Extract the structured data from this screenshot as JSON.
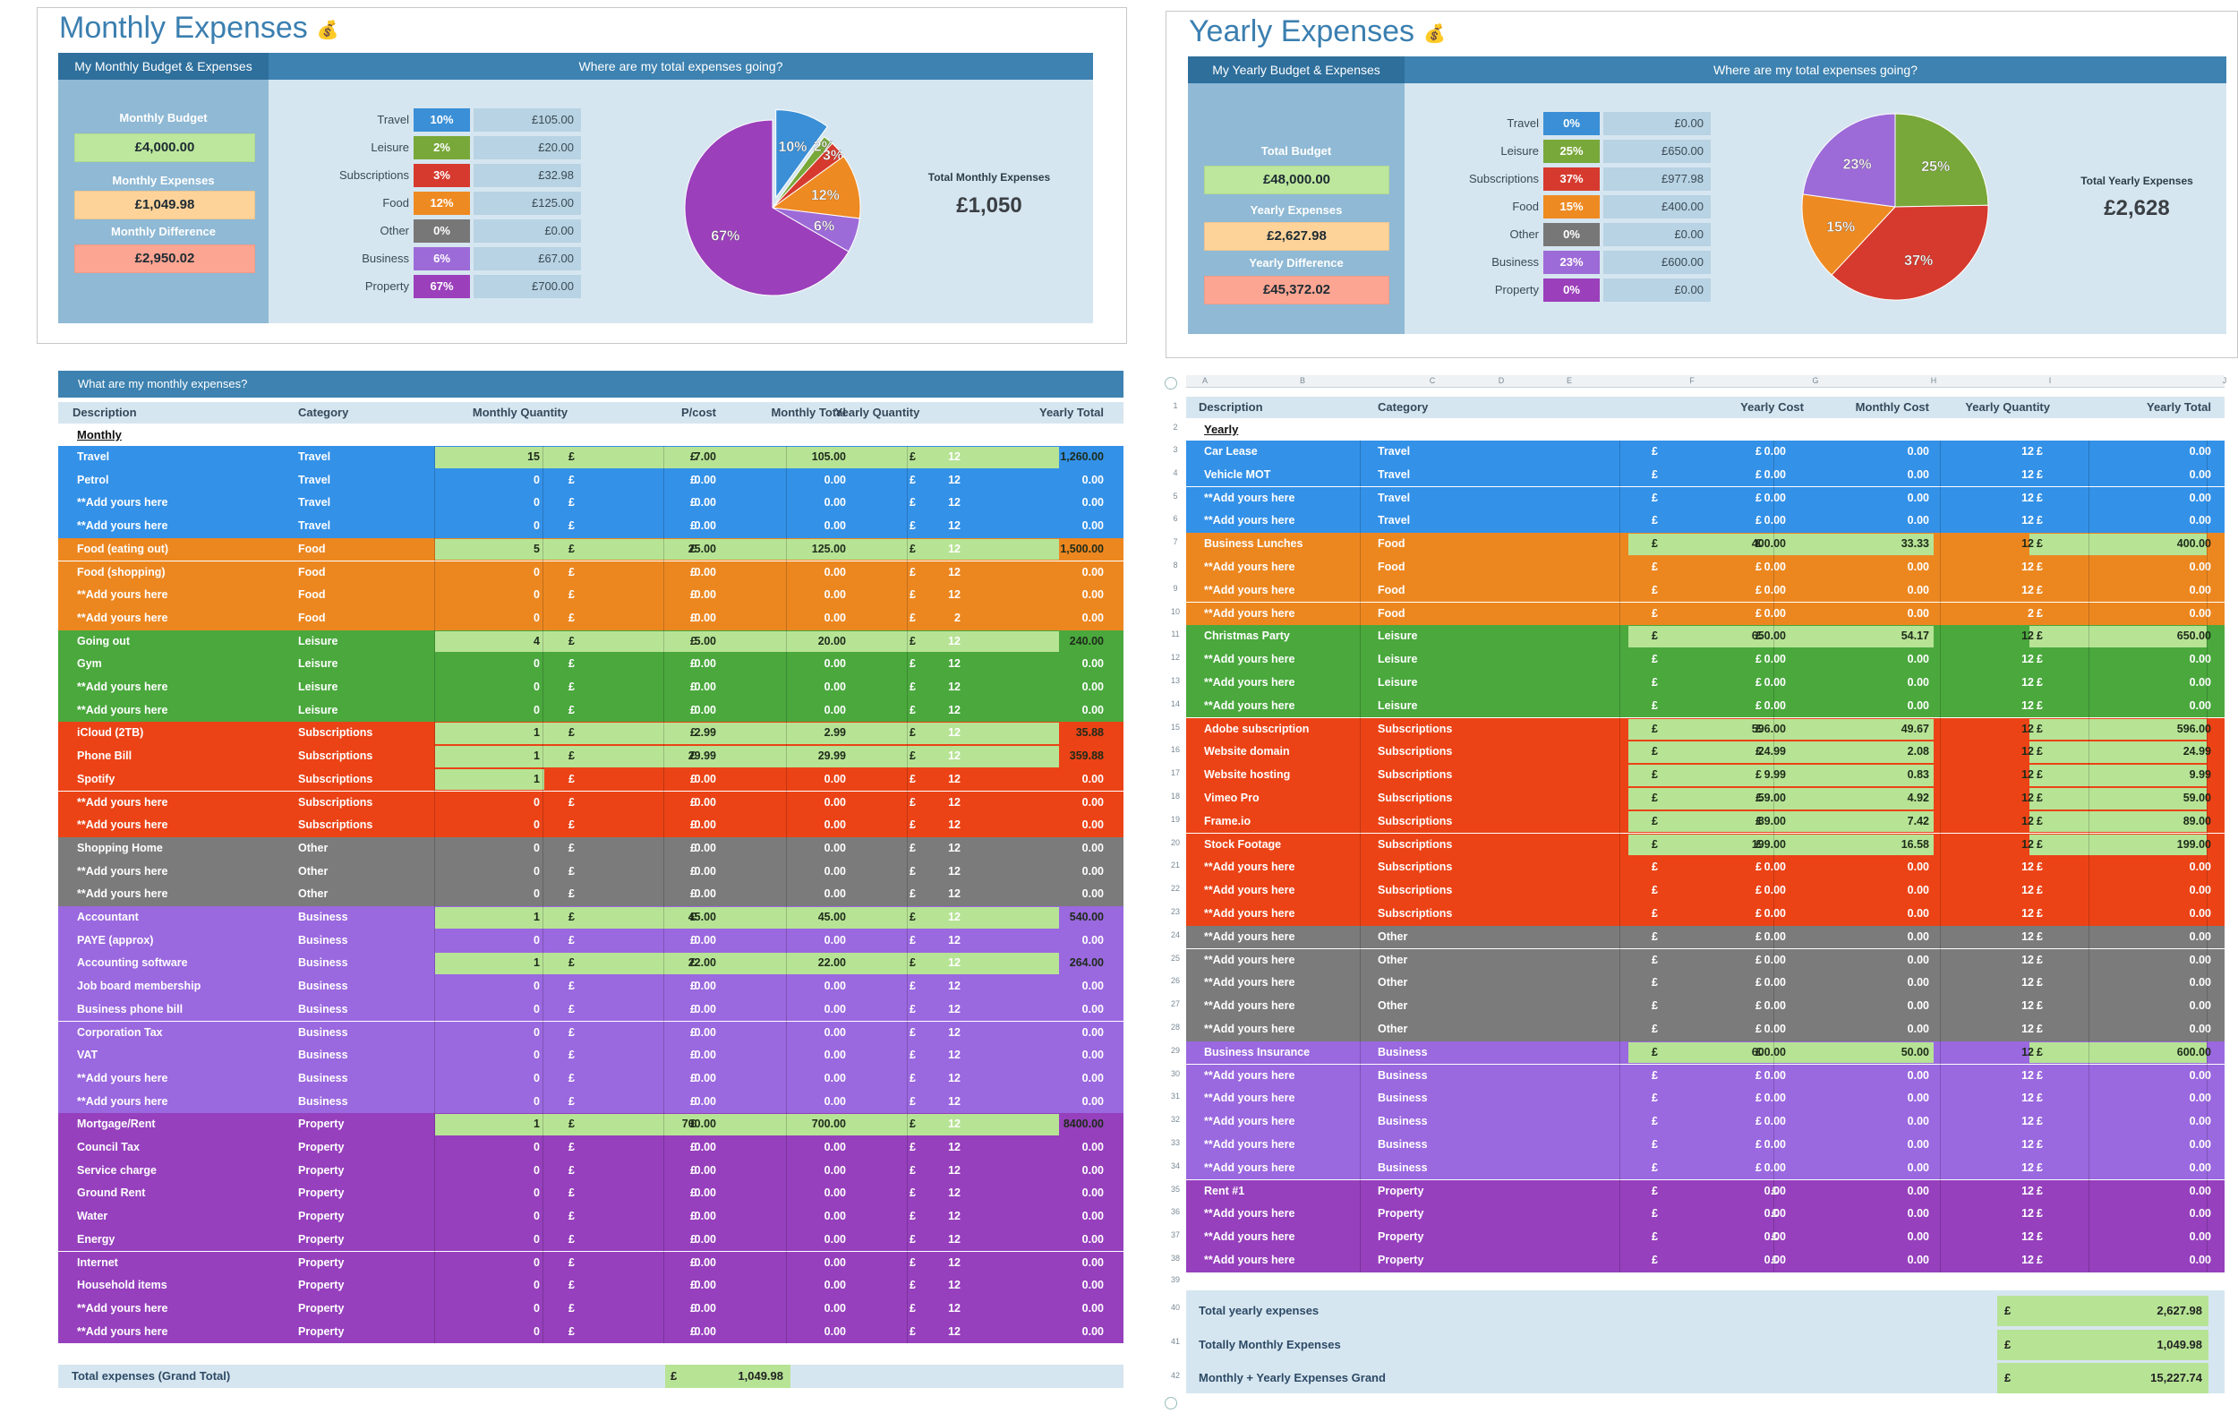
{
  "monthly": {
    "title": "Monthly Expenses",
    "icon": "money-bag-icon",
    "dash_left_header": "My Monthly Budget & Expenses",
    "dash_right_header": "Where are my total expenses going?",
    "budget_label": "Monthly Budget",
    "budget_value": "£4,000.00",
    "expenses_label": "Monthly Expenses",
    "expenses_value": "£1,049.98",
    "difference_label": "Monthly Difference",
    "difference_value": "£2,950.02",
    "total_label": "Total Monthly Expenses",
    "total_value": "£1,050",
    "categories": [
      {
        "name": "Travel",
        "pct": "10%",
        "amount": "£105.00",
        "color": "#3a8fd6"
      },
      {
        "name": "Leisure",
        "pct": "2%",
        "amount": "£20.00",
        "color": "#78a83a"
      },
      {
        "name": "Subscriptions",
        "pct": "3%",
        "amount": "£32.98",
        "color": "#d63a2e"
      },
      {
        "name": "Food",
        "pct": "12%",
        "amount": "£125.00",
        "color": "#ee8a22"
      },
      {
        "name": "Other",
        "pct": "0%",
        "amount": "£0.00",
        "color": "#777777"
      },
      {
        "name": "Business",
        "pct": "6%",
        "amount": "£67.00",
        "color": "#9d6bd8"
      },
      {
        "name": "Property",
        "pct": "67%",
        "amount": "£700.00",
        "color": "#9b3fbb"
      }
    ],
    "table_title": "What are my monthly expenses?",
    "headers": [
      "Description",
      "Category",
      "Monthly Quantity",
      "P/cost",
      "Monthly Total",
      "Yearly Quantity",
      "Yearly Total"
    ],
    "section_label": "Monthly",
    "rows": [
      {
        "d": "Travel",
        "c": "Travel",
        "q": "15",
        "p": "7.00",
        "m": "105.00",
        "yq": "12",
        "yt": "1,260.00",
        "hl": true
      },
      {
        "d": "Petrol",
        "c": "Travel",
        "q": "0",
        "p": "0.00",
        "m": "0.00",
        "yq": "12",
        "yt": "0.00"
      },
      {
        "d": "**Add yours here",
        "c": "Travel",
        "q": "0",
        "p": "0.00",
        "m": "0.00",
        "yq": "12",
        "yt": "0.00"
      },
      {
        "d": "**Add yours here",
        "c": "Travel",
        "q": "0",
        "p": "0.00",
        "m": "0.00",
        "yq": "12",
        "yt": "0.00"
      },
      {
        "d": "Food (eating out)",
        "c": "Food",
        "q": "5",
        "p": "25.00",
        "m": "125.00",
        "yq": "12",
        "yt": "1,500.00",
        "hl": true
      },
      {
        "d": "Food (shopping)",
        "c": "Food",
        "q": "0",
        "p": "0.00",
        "m": "0.00",
        "yq": "12",
        "yt": "0.00"
      },
      {
        "d": "**Add yours here",
        "c": "Food",
        "q": "0",
        "p": "0.00",
        "m": "0.00",
        "yq": "12",
        "yt": "0.00"
      },
      {
        "d": "**Add yours here",
        "c": "Food",
        "q": "0",
        "p": "0.00",
        "m": "0.00",
        "yq": "2",
        "yt": "0.00"
      },
      {
        "d": "Going out",
        "c": "Leisure",
        "q": "4",
        "p": "5.00",
        "m": "20.00",
        "yq": "12",
        "yt": "240.00",
        "hl": true
      },
      {
        "d": "Gym",
        "c": "Leisure",
        "q": "0",
        "p": "0.00",
        "m": "0.00",
        "yq": "12",
        "yt": "0.00"
      },
      {
        "d": "**Add yours here",
        "c": "Leisure",
        "q": "0",
        "p": "0.00",
        "m": "0.00",
        "yq": "12",
        "yt": "0.00"
      },
      {
        "d": "**Add yours here",
        "c": "Leisure",
        "q": "0",
        "p": "0.00",
        "m": "0.00",
        "yq": "12",
        "yt": "0.00"
      },
      {
        "d": "iCloud (2TB)",
        "c": "Subscriptions",
        "q": "1",
        "p": "2.99",
        "m": "2.99",
        "yq": "12",
        "yt": "35.88",
        "hl": true
      },
      {
        "d": "Phone Bill",
        "c": "Subscriptions",
        "q": "1",
        "p": "29.99",
        "m": "29.99",
        "yq": "12",
        "yt": "359.88",
        "hl": true
      },
      {
        "d": "Spotify",
        "c": "Subscriptions",
        "q": "1",
        "p": "0.00",
        "m": "0.00",
        "yq": "12",
        "yt": "0.00",
        "hlq": true
      },
      {
        "d": "**Add yours here",
        "c": "Subscriptions",
        "q": "0",
        "p": "0.00",
        "m": "0.00",
        "yq": "12",
        "yt": "0.00"
      },
      {
        "d": "**Add yours here",
        "c": "Subscriptions",
        "q": "0",
        "p": "0.00",
        "m": "0.00",
        "yq": "12",
        "yt": "0.00"
      },
      {
        "d": "Shopping Home",
        "c": "Other",
        "q": "0",
        "p": "0.00",
        "m": "0.00",
        "yq": "12",
        "yt": "0.00"
      },
      {
        "d": "**Add yours here",
        "c": "Other",
        "q": "0",
        "p": "0.00",
        "m": "0.00",
        "yq": "12",
        "yt": "0.00"
      },
      {
        "d": "**Add yours here",
        "c": "Other",
        "q": "0",
        "p": "0.00",
        "m": "0.00",
        "yq": "12",
        "yt": "0.00"
      },
      {
        "d": "Accountant",
        "c": "Business",
        "q": "1",
        "p": "45.00",
        "m": "45.00",
        "yq": "12",
        "yt": "540.00",
        "hl": true
      },
      {
        "d": "PAYE (approx)",
        "c": "Business",
        "q": "0",
        "p": "0.00",
        "m": "0.00",
        "yq": "12",
        "yt": "0.00"
      },
      {
        "d": "Accounting software",
        "c": "Business",
        "q": "1",
        "p": "22.00",
        "m": "22.00",
        "yq": "12",
        "yt": "264.00",
        "hl": true
      },
      {
        "d": "Job board membership",
        "c": "Business",
        "q": "0",
        "p": "0.00",
        "m": "0.00",
        "yq": "12",
        "yt": "0.00"
      },
      {
        "d": "Business phone bill",
        "c": "Business",
        "q": "0",
        "p": "0.00",
        "m": "0.00",
        "yq": "12",
        "yt": "0.00"
      },
      {
        "d": "Corporation Tax",
        "c": "Business",
        "q": "0",
        "p": "0.00",
        "m": "0.00",
        "yq": "12",
        "yt": "0.00"
      },
      {
        "d": "VAT",
        "c": "Business",
        "q": "0",
        "p": "0.00",
        "m": "0.00",
        "yq": "12",
        "yt": "0.00"
      },
      {
        "d": "**Add yours here",
        "c": "Business",
        "q": "0",
        "p": "0.00",
        "m": "0.00",
        "yq": "12",
        "yt": "0.00"
      },
      {
        "d": "**Add yours here",
        "c": "Business",
        "q": "0",
        "p": "0.00",
        "m": "0.00",
        "yq": "12",
        "yt": "0.00"
      },
      {
        "d": "Mortgage/Rent",
        "c": "Property",
        "q": "1",
        "p": "700.00",
        "m": "700.00",
        "yq": "12",
        "yt": "8400.00",
        "hl": true
      },
      {
        "d": "Council Tax",
        "c": "Property",
        "q": "0",
        "p": "0.00",
        "m": "0.00",
        "yq": "12",
        "yt": "0.00"
      },
      {
        "d": "Service charge",
        "c": "Property",
        "q": "0",
        "p": "0.00",
        "m": "0.00",
        "yq": "12",
        "yt": "0.00"
      },
      {
        "d": "Ground Rent",
        "c": "Property",
        "q": "0",
        "p": "0.00",
        "m": "0.00",
        "yq": "12",
        "yt": "0.00"
      },
      {
        "d": "Water",
        "c": "Property",
        "q": "0",
        "p": "0.00",
        "m": "0.00",
        "yq": "12",
        "yt": "0.00"
      },
      {
        "d": "Energy",
        "c": "Property",
        "q": "0",
        "p": "0.00",
        "m": "0.00",
        "yq": "12",
        "yt": "0.00"
      },
      {
        "d": "Internet",
        "c": "Property",
        "q": "0",
        "p": "0.00",
        "m": "0.00",
        "yq": "12",
        "yt": "0.00"
      },
      {
        "d": "Household items",
        "c": "Property",
        "q": "0",
        "p": "0.00",
        "m": "0.00",
        "yq": "12",
        "yt": "0.00"
      },
      {
        "d": "**Add yours here",
        "c": "Property",
        "q": "0",
        "p": "0.00",
        "m": "0.00",
        "yq": "12",
        "yt": "0.00"
      },
      {
        "d": "**Add yours here",
        "c": "Property",
        "q": "0",
        "p": "0.00",
        "m": "0.00",
        "yq": "12",
        "yt": "0.00"
      }
    ],
    "grand_total_label": "Total expenses (Grand Total)",
    "grand_total_value": "1,049.98"
  },
  "yearly": {
    "title": "Yearly Expenses",
    "icon": "money-bag-icon",
    "dash_left_header": "My Yearly Budget & Expenses",
    "dash_right_header": "Where are my total expenses going?",
    "budget_label": "Total Budget",
    "budget_value": "£48,000.00",
    "expenses_label": "Yearly Expenses",
    "expenses_value": "£2,627.98",
    "difference_label": "Yearly Difference",
    "difference_value": "£45,372.02",
    "total_label": "Total Yearly Expenses",
    "total_value": "£2,628",
    "categories": [
      {
        "name": "Travel",
        "pct": "0%",
        "amount": "£0.00",
        "color": "#3a8fd6"
      },
      {
        "name": "Leisure",
        "pct": "25%",
        "amount": "£650.00",
        "color": "#78a83a"
      },
      {
        "name": "Subscriptions",
        "pct": "37%",
        "amount": "£977.98",
        "color": "#d63a2e"
      },
      {
        "name": "Food",
        "pct": "15%",
        "amount": "£400.00",
        "color": "#ee8a22"
      },
      {
        "name": "Other",
        "pct": "0%",
        "amount": "£0.00",
        "color": "#777777"
      },
      {
        "name": "Business",
        "pct": "23%",
        "amount": "£600.00",
        "color": "#9d6bd8"
      },
      {
        "name": "Property",
        "pct": "0%",
        "amount": "£0.00",
        "color": "#9b3fbb"
      }
    ],
    "col_letters": [
      "A",
      "B",
      "C",
      "D",
      "E",
      "F",
      "G",
      "H",
      "I",
      "J"
    ],
    "headers": [
      "Description",
      "Category",
      "Yearly Cost",
      "Monthly Cost",
      "Yearly Quantity",
      "Yearly Total"
    ],
    "section_label": "Yearly",
    "rows": [
      {
        "d": "Car Lease",
        "c": "Travel",
        "yc": "0.00",
        "mc": "0.00",
        "yq": "12",
        "yt": "0.00"
      },
      {
        "d": "Vehicle MOT",
        "c": "Travel",
        "yc": "0.00",
        "mc": "0.00",
        "yq": "12",
        "yt": "0.00"
      },
      {
        "d": "**Add yours here",
        "c": "Travel",
        "yc": "0.00",
        "mc": "0.00",
        "yq": "12",
        "yt": "0.00"
      },
      {
        "d": "**Add yours here",
        "c": "Travel",
        "yc": "0.00",
        "mc": "0.00",
        "yq": "12",
        "yt": "0.00"
      },
      {
        "d": "Business Lunches",
        "c": "Food",
        "yc": "400.00",
        "mc": "33.33",
        "yq": "12",
        "yt": "400.00",
        "hl": true
      },
      {
        "d": "**Add yours here",
        "c": "Food",
        "yc": "0.00",
        "mc": "0.00",
        "yq": "12",
        "yt": "0.00"
      },
      {
        "d": "**Add yours here",
        "c": "Food",
        "yc": "0.00",
        "mc": "0.00",
        "yq": "12",
        "yt": "0.00"
      },
      {
        "d": "**Add yours here",
        "c": "Food",
        "yc": "0.00",
        "mc": "0.00",
        "yq": "2",
        "yt": "0.00"
      },
      {
        "d": "Christmas Party",
        "c": "Leisure",
        "yc": "650.00",
        "mc": "54.17",
        "yq": "12",
        "yt": "650.00",
        "hl": true
      },
      {
        "d": "**Add yours here",
        "c": "Leisure",
        "yc": "0.00",
        "mc": "0.00",
        "yq": "12",
        "yt": "0.00"
      },
      {
        "d": "**Add yours here",
        "c": "Leisure",
        "yc": "0.00",
        "mc": "0.00",
        "yq": "12",
        "yt": "0.00"
      },
      {
        "d": "**Add yours here",
        "c": "Leisure",
        "yc": "0.00",
        "mc": "0.00",
        "yq": "12",
        "yt": "0.00"
      },
      {
        "d": "Adobe subscription",
        "c": "Subscriptions",
        "yc": "596.00",
        "mc": "49.67",
        "yq": "12",
        "yt": "596.00",
        "hl": true
      },
      {
        "d": "Website domain",
        "c": "Subscriptions",
        "yc": "24.99",
        "mc": "2.08",
        "yq": "12",
        "yt": "24.99",
        "hl": true
      },
      {
        "d": "Website hosting",
        "c": "Subscriptions",
        "yc": "9.99",
        "mc": "0.83",
        "yq": "12",
        "yt": "9.99",
        "hl": true
      },
      {
        "d": "Vimeo Pro",
        "c": "Subscriptions",
        "yc": "59.00",
        "mc": "4.92",
        "yq": "12",
        "yt": "59.00",
        "hl": true
      },
      {
        "d": "Frame.io",
        "c": "Subscriptions",
        "yc": "89.00",
        "mc": "7.42",
        "yq": "12",
        "yt": "89.00",
        "hl": true
      },
      {
        "d": "Stock Footage",
        "c": "Subscriptions",
        "yc": "199.00",
        "mc": "16.58",
        "yq": "12",
        "yt": "199.00",
        "hl": true
      },
      {
        "d": "**Add yours here",
        "c": "Subscriptions",
        "yc": "0.00",
        "mc": "0.00",
        "yq": "12",
        "yt": "0.00"
      },
      {
        "d": "**Add yours here",
        "c": "Subscriptions",
        "yc": "0.00",
        "mc": "0.00",
        "yq": "12",
        "yt": "0.00"
      },
      {
        "d": "**Add yours here",
        "c": "Subscriptions",
        "yc": "0.00",
        "mc": "0.00",
        "yq": "12",
        "yt": "0.00"
      },
      {
        "d": "**Add yours here",
        "c": "Other",
        "yc": "0.00",
        "mc": "0.00",
        "yq": "12",
        "yt": "0.00"
      },
      {
        "d": "**Add yours here",
        "c": "Other",
        "yc": "0.00",
        "mc": "0.00",
        "yq": "12",
        "yt": "0.00"
      },
      {
        "d": "**Add yours here",
        "c": "Other",
        "yc": "0.00",
        "mc": "0.00",
        "yq": "12",
        "yt": "0.00"
      },
      {
        "d": "**Add yours here",
        "c": "Other",
        "yc": "0.00",
        "mc": "0.00",
        "yq": "12",
        "yt": "0.00"
      },
      {
        "d": "**Add yours here",
        "c": "Other",
        "yc": "0.00",
        "mc": "0.00",
        "yq": "12",
        "yt": "0.00"
      },
      {
        "d": "Business Insurance",
        "c": "Business",
        "yc": "600.00",
        "mc": "50.00",
        "yq": "12",
        "yt": "600.00",
        "hl": true
      },
      {
        "d": "**Add yours here",
        "c": "Business",
        "yc": "0.00",
        "mc": "0.00",
        "yq": "12",
        "yt": "0.00"
      },
      {
        "d": "**Add yours here",
        "c": "Business",
        "yc": "0.00",
        "mc": "0.00",
        "yq": "12",
        "yt": "0.00"
      },
      {
        "d": "**Add yours here",
        "c": "Business",
        "yc": "0.00",
        "mc": "0.00",
        "yq": "12",
        "yt": "0.00"
      },
      {
        "d": "**Add yours here",
        "c": "Business",
        "yc": "0.00",
        "mc": "0.00",
        "yq": "12",
        "yt": "0.00"
      },
      {
        "d": "**Add yours here",
        "c": "Business",
        "yc": "0.00",
        "mc": "0.00",
        "yq": "12",
        "yt": "0.00"
      },
      {
        "d": "Rent #1",
        "c": "Property",
        "yc": "0.00",
        "mc": "0.00",
        "yq": "12",
        "yt": "0.00"
      },
      {
        "d": "**Add yours here",
        "c": "Property",
        "yc": "0.00",
        "mc": "0.00",
        "yq": "12",
        "yt": "0.00"
      },
      {
        "d": "**Add yours here",
        "c": "Property",
        "yc": "0.00",
        "mc": "0.00",
        "yq": "12",
        "yt": "0.00"
      },
      {
        "d": "**Add yours here",
        "c": "Property",
        "yc": "0.00",
        "mc": "0.00",
        "yq": "12",
        "yt": "0.00"
      }
    ],
    "totals": [
      {
        "label": "Total yearly expenses",
        "value": "2,627.98"
      },
      {
        "label": "Totally Monthly Expenses",
        "value": "1,049.98"
      },
      {
        "label": "Monthly + Yearly Expenses Grand",
        "value": "15,227.74"
      }
    ]
  },
  "currency_symbol": "£",
  "category_colors": {
    "Travel": "#3391e8",
    "Food": "#ec8720",
    "Leisure": "#4aa83d",
    "Subscriptions": "#eb4316",
    "Other": "#7b7b7b",
    "Business": "#9a68df",
    "Property": "#9640bd"
  },
  "chart_data": [
    {
      "type": "pie",
      "title": "Where are my total expenses going?",
      "labels": [
        "Travel",
        "Leisure",
        "Subscriptions",
        "Food",
        "Other",
        "Business",
        "Property"
      ],
      "values": [
        105.0,
        20.0,
        32.98,
        125.0,
        0,
        67.0,
        700.0
      ],
      "percent_labels": [
        "10%",
        "2%",
        "3%",
        "12%",
        "0%",
        "6%",
        "67%"
      ]
    },
    {
      "type": "pie",
      "title": "Where are my total expenses going?",
      "labels": [
        "Travel",
        "Leisure",
        "Subscriptions",
        "Food",
        "Other",
        "Business",
        "Property"
      ],
      "values": [
        0,
        650.0,
        977.98,
        400.0,
        0,
        600.0,
        0
      ],
      "percent_labels": [
        "0%",
        "25%",
        "37%",
        "15%",
        "0%",
        "23%",
        "0%"
      ]
    }
  ]
}
